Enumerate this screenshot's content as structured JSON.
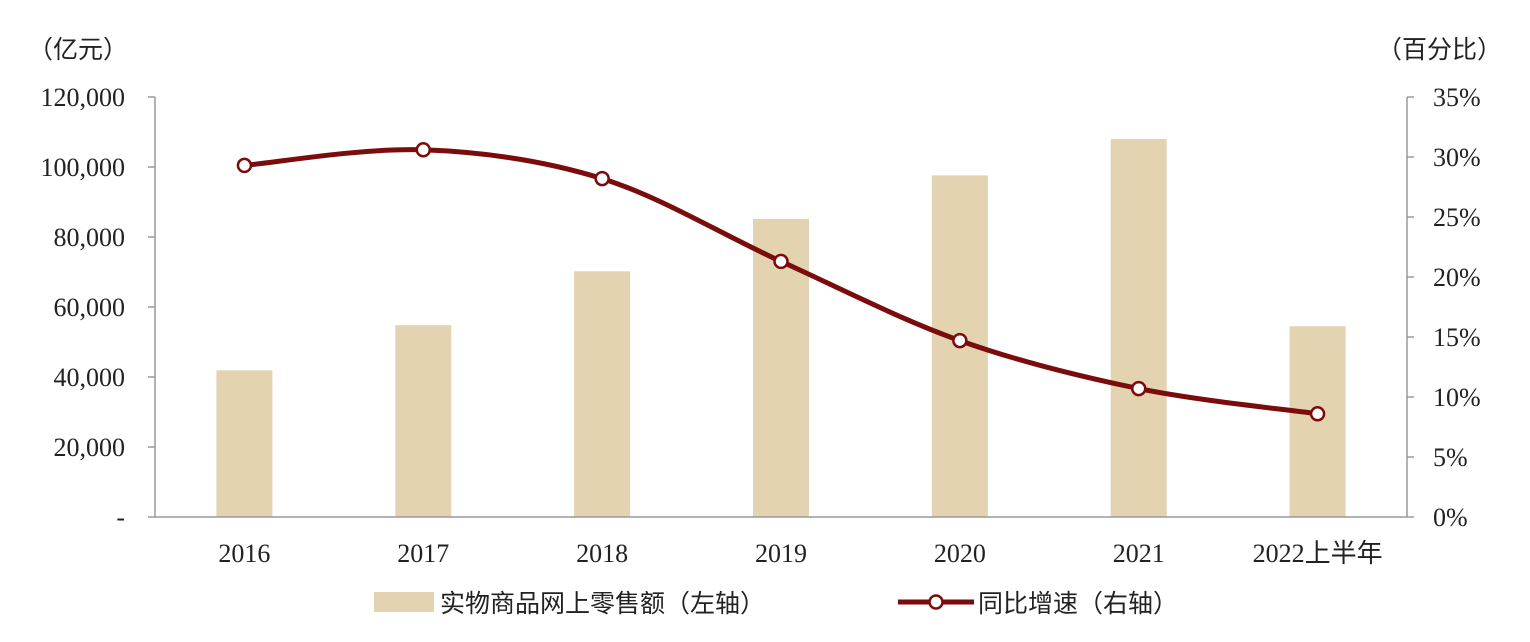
{
  "chart_data": {
    "type": "bar+line",
    "categories": [
      "2016",
      "2017",
      "2018",
      "2019",
      "2020",
      "2021",
      "2022上半年"
    ],
    "left_axis": {
      "unit_label": "（亿元）",
      "ylim": [
        0,
        120000
      ],
      "ticks": [
        0,
        20000,
        40000,
        60000,
        80000,
        100000,
        120000
      ],
      "tick_labels": [
        "-",
        "20,000",
        "40,000",
        "60,000",
        "80,000",
        "100,000",
        "120,000"
      ]
    },
    "right_axis": {
      "unit_label": "（百分比）",
      "ylim": [
        0,
        35
      ],
      "ticks": [
        0,
        5,
        10,
        15,
        20,
        25,
        30,
        35
      ],
      "tick_labels": [
        "0%",
        "5%",
        "10%",
        "15%",
        "20%",
        "25%",
        "30%",
        "35%"
      ]
    },
    "series": [
      {
        "name": "实物商品网上零售额（左轴）",
        "type": "bar",
        "axis": "left",
        "color": "#e3d3b1",
        "values": [
          41900,
          54800,
          70200,
          85200,
          97600,
          108000,
          54500
        ]
      },
      {
        "name": "同比增速（右轴）",
        "type": "line",
        "axis": "right",
        "color": "#7b0c0c",
        "marker_fill": "#ffffff",
        "values": [
          29.3,
          30.6,
          28.2,
          21.3,
          14.7,
          10.7,
          8.6
        ]
      }
    ],
    "legend_position": "bottom-center",
    "grid": false
  }
}
